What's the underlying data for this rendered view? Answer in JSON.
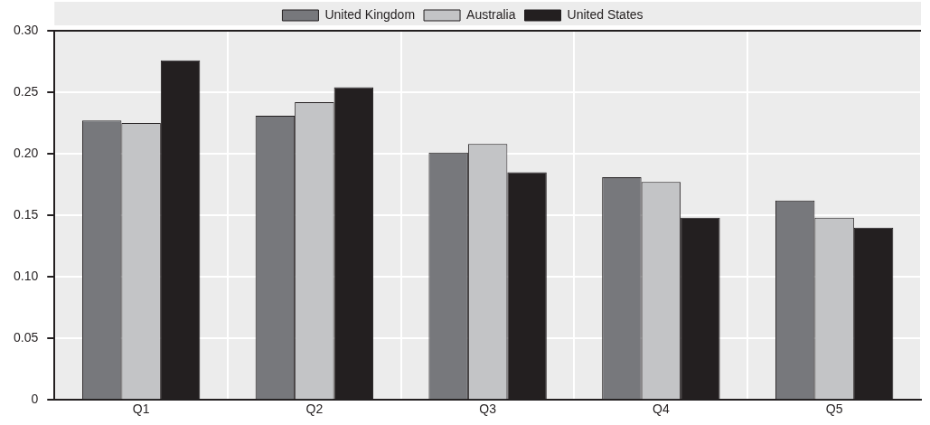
{
  "chart_data": {
    "type": "bar",
    "categories": [
      "Q1",
      "Q2",
      "Q3",
      "Q4",
      "Q5"
    ],
    "series": [
      {
        "name": "United Kingdom",
        "color": "#77787c",
        "values": [
          0.227,
          0.231,
          0.201,
          0.181,
          0.162
        ]
      },
      {
        "name": "Australia",
        "color": "#c3c4c6",
        "values": [
          0.225,
          0.242,
          0.208,
          0.177,
          0.148
        ]
      },
      {
        "name": "United States",
        "color": "#231f20",
        "values": [
          0.276,
          0.254,
          0.185,
          0.148,
          0.14
        ]
      }
    ],
    "ylim": [
      0,
      0.3
    ],
    "yticks": [
      {
        "value": 0,
        "label": "0"
      },
      {
        "value": 0.05,
        "label": "0.05"
      },
      {
        "value": 0.1,
        "label": "0.10"
      },
      {
        "value": 0.15,
        "label": "0.15"
      },
      {
        "value": 0.2,
        "label": "0.20"
      },
      {
        "value": 0.25,
        "label": "0.25"
      },
      {
        "value": 0.3,
        "label": "0.30"
      }
    ],
    "grid": true,
    "legend": "top"
  }
}
